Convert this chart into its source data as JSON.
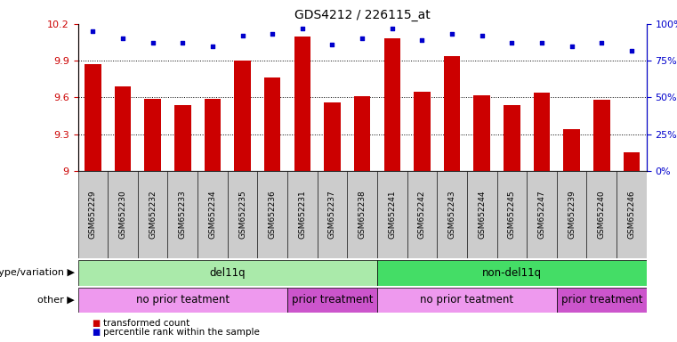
{
  "title": "GDS4212 / 226115_at",
  "samples": [
    "GSM652229",
    "GSM652230",
    "GSM652232",
    "GSM652233",
    "GSM652234",
    "GSM652235",
    "GSM652236",
    "GSM652231",
    "GSM652237",
    "GSM652238",
    "GSM652241",
    "GSM652242",
    "GSM652243",
    "GSM652244",
    "GSM652245",
    "GSM652247",
    "GSM652239",
    "GSM652240",
    "GSM652246"
  ],
  "bar_values": [
    9.87,
    9.69,
    9.59,
    9.54,
    9.59,
    9.9,
    9.76,
    10.1,
    9.56,
    9.61,
    10.08,
    9.65,
    9.94,
    9.62,
    9.54,
    9.64,
    9.34,
    9.58,
    9.15
  ],
  "dot_values": [
    95,
    90,
    87,
    87,
    85,
    92,
    93,
    97,
    86,
    90,
    97,
    89,
    93,
    92,
    87,
    87,
    85,
    87,
    82
  ],
  "y_min": 9.0,
  "y_max": 10.2,
  "y_ticks": [
    9.0,
    9.3,
    9.6,
    9.9,
    10.2
  ],
  "y_tick_labels": [
    "9",
    "9.3",
    "9.6",
    "9.9",
    "10.2"
  ],
  "right_y_ticks": [
    0,
    25,
    50,
    75,
    100
  ],
  "right_y_labels": [
    "0%",
    "25%",
    "50%",
    "75%",
    "100%"
  ],
  "bar_color": "#cc0000",
  "dot_color": "#0000cc",
  "bar_bottom": 9.0,
  "genotype_groups": [
    {
      "label": "del11q",
      "start": 0,
      "end": 10,
      "color": "#aaeaaa"
    },
    {
      "label": "non-del11q",
      "start": 10,
      "end": 19,
      "color": "#44dd66"
    }
  ],
  "other_groups": [
    {
      "label": "no prior teatment",
      "start": 0,
      "end": 7,
      "color": "#ee99ee"
    },
    {
      "label": "prior treatment",
      "start": 7,
      "end": 10,
      "color": "#cc55cc"
    },
    {
      "label": "no prior teatment",
      "start": 10,
      "end": 16,
      "color": "#ee99ee"
    },
    {
      "label": "prior treatment",
      "start": 16,
      "end": 19,
      "color": "#cc55cc"
    }
  ],
  "legend_red_label": "transformed count",
  "legend_blue_label": "percentile rank within the sample",
  "left_label_geno": "genotype/variation",
  "left_label_other": "other",
  "bg_color": "#ffffff",
  "tick_bg_color": "#cccccc",
  "xticklabel_fontsize": 6.5,
  "bar_width": 0.55
}
